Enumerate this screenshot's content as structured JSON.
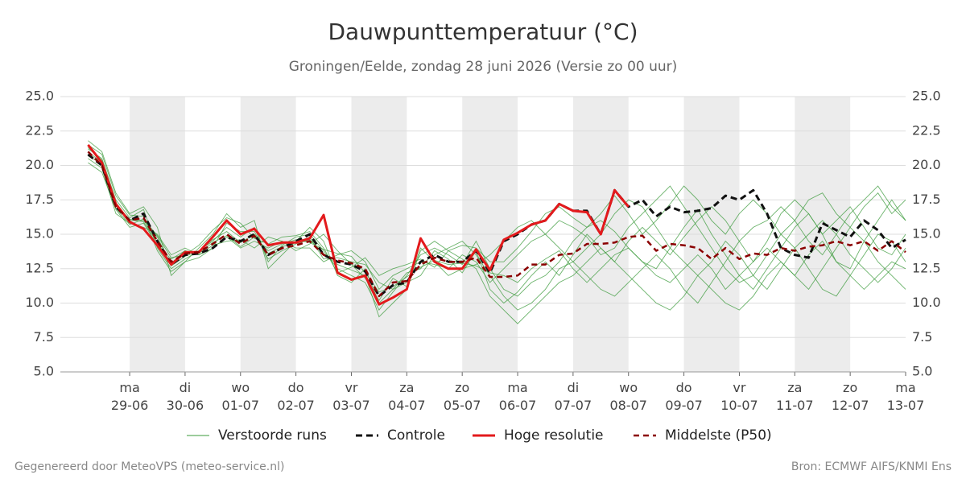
{
  "chart_data": {
    "type": "line",
    "title": "Dauwpunttemperatuur (°C)",
    "subtitle": "Groningen/Eelde, zondag 28 juni 2026 (Versie zo 00 uur)",
    "footer_left": "Gegenereerd door MeteoVPS (meteo-service.nl)",
    "footer_right": "Bron: ECMWF AIFS/KNMI Ens",
    "xlim": [
      -6,
      360
    ],
    "ylim": [
      5,
      25
    ],
    "yticks": [
      {
        "value": 5,
        "label": "5.0"
      },
      {
        "value": 7.5,
        "label": "7.5"
      },
      {
        "value": 10,
        "label": "10.0"
      },
      {
        "value": 12.5,
        "label": "12.5"
      },
      {
        "value": 15,
        "label": "15.0"
      },
      {
        "value": 17.5,
        "label": "17.5"
      },
      {
        "value": 20,
        "label": "20.0"
      },
      {
        "value": 22.5,
        "label": "22.5"
      },
      {
        "value": 25,
        "label": "25.0"
      }
    ],
    "xticks": [
      {
        "value": 24,
        "label": "ma 29-06"
      },
      {
        "value": 48,
        "label": "di 30-06"
      },
      {
        "value": 72,
        "label": "wo 01-07"
      },
      {
        "value": 96,
        "label": "do 02-07"
      },
      {
        "value": 120,
        "label": "vr 03-07"
      },
      {
        "value": 144,
        "label": "za 04-07"
      },
      {
        "value": 168,
        "label": "zo 05-07"
      },
      {
        "value": 192,
        "label": "ma 06-07"
      },
      {
        "value": 216,
        "label": "di 07-07"
      },
      {
        "value": 240,
        "label": "wo 08-07"
      },
      {
        "value": 264,
        "label": "do 09-07"
      },
      {
        "value": 288,
        "label": "vr 10-07"
      },
      {
        "value": 312,
        "label": "za 11-07"
      },
      {
        "value": 336,
        "label": "zo 12-07"
      },
      {
        "value": 360,
        "label": "ma 13-07"
      }
    ],
    "grid": true,
    "x": [
      6,
      12,
      18,
      24,
      30,
      36,
      42,
      48,
      54,
      60,
      66,
      72,
      78,
      84,
      90,
      96,
      102,
      108,
      114,
      120,
      126,
      132,
      138,
      144,
      150,
      156,
      162,
      168,
      174,
      180,
      186,
      192,
      198,
      204,
      210,
      216,
      222,
      228,
      234,
      240,
      246,
      252,
      258,
      264,
      270,
      276,
      282,
      288,
      294,
      300,
      306,
      312,
      318,
      324,
      330,
      336,
      342,
      348,
      354,
      360
    ],
    "ensemble": {
      "name": "Verstoorde runs",
      "color": "#3a9a3a",
      "members": [
        [
          21.2,
          20.5,
          17.5,
          16.2,
          16.8,
          14.0,
          12.5,
          13.2,
          13.8,
          14.5,
          15.5,
          14.8,
          15.5,
          13.0,
          14.2,
          14.8,
          15.0,
          13.8,
          12.5,
          12.0,
          11.5,
          9.5,
          10.8,
          12.0,
          13.5,
          14.0,
          13.5,
          12.8,
          14.5,
          12.5,
          11.0,
          10.5,
          11.5,
          12.0,
          13.0,
          14.5,
          15.5,
          16.0,
          15.2,
          14.0,
          13.0,
          12.5,
          14.0,
          15.5,
          16.8,
          15.0,
          13.5,
          12.0,
          11.0,
          12.5,
          14.0,
          15.5,
          16.5,
          15.0,
          13.0,
          12.5,
          14.5,
          16.0,
          17.5,
          16.0
        ],
        [
          20.5,
          19.8,
          16.5,
          15.8,
          15.5,
          15.0,
          13.5,
          14.0,
          13.5,
          14.0,
          14.8,
          14.0,
          14.5,
          14.0,
          14.5,
          14.0,
          14.0,
          13.0,
          13.5,
          13.8,
          13.0,
          11.0,
          12.0,
          12.5,
          13.0,
          12.8,
          12.5,
          13.5,
          13.0,
          11.5,
          12.5,
          13.5,
          14.5,
          15.0,
          16.0,
          15.5,
          14.8,
          13.5,
          14.0,
          15.5,
          16.5,
          17.5,
          18.5,
          17.0,
          15.5,
          14.0,
          12.5,
          11.5,
          12.0,
          13.5,
          15.0,
          14.0,
          12.5,
          11.0,
          10.5,
          12.0,
          13.5,
          15.0,
          14.5,
          13.0
        ],
        [
          21.8,
          21.0,
          18.0,
          16.5,
          17.0,
          15.5,
          12.0,
          13.0,
          14.0,
          15.0,
          16.5,
          15.5,
          16.0,
          12.5,
          13.5,
          14.5,
          15.5,
          14.5,
          12.0,
          11.5,
          12.5,
          10.0,
          11.0,
          11.5,
          12.0,
          13.5,
          14.0,
          14.5,
          13.5,
          12.0,
          10.5,
          9.5,
          10.0,
          11.0,
          12.5,
          13.0,
          12.0,
          11.0,
          10.5,
          11.5,
          12.5,
          13.5,
          12.5,
          11.0,
          10.0,
          11.5,
          13.0,
          14.5,
          15.5,
          16.0,
          17.0,
          16.0,
          14.5,
          13.5,
          15.0,
          16.5,
          17.5,
          18.5,
          17.0,
          16.0
        ],
        [
          20.2,
          19.5,
          16.8,
          15.5,
          15.8,
          14.2,
          13.2,
          13.8,
          13.5,
          14.2,
          14.5,
          14.6,
          14.0,
          14.8,
          14.5,
          13.8,
          14.3,
          15.0,
          13.8,
          12.8,
          11.8,
          10.2,
          11.8,
          11.2,
          14.0,
          13.0,
          12.0,
          12.5,
          12.8,
          13.5,
          14.5,
          15.5,
          16.0,
          15.0,
          14.0,
          13.0,
          14.0,
          15.0,
          16.5,
          17.5,
          17.0,
          15.5,
          14.0,
          13.0,
          12.0,
          11.0,
          10.0,
          9.5,
          10.5,
          12.0,
          13.0,
          12.0,
          11.0,
          12.5,
          14.0,
          15.5,
          14.5,
          13.0,
          12.0,
          11.0
        ],
        [
          21.0,
          20.2,
          17.3,
          16.0,
          16.0,
          14.8,
          12.7,
          13.4,
          13.8,
          14.6,
          15.2,
          14.4,
          15.0,
          13.6,
          14.1,
          14.4,
          14.8,
          13.2,
          13.3,
          13.0,
          12.8,
          11.5,
          11.0,
          12.2,
          12.5,
          13.8,
          13.2,
          12.2,
          13.8,
          11.0,
          10.0,
          10.8,
          12.0,
          13.0,
          12.0,
          13.5,
          15.0,
          14.0,
          13.0,
          14.5,
          15.5,
          14.5,
          13.5,
          14.8,
          16.0,
          17.0,
          16.0,
          14.5,
          13.0,
          14.5,
          16.5,
          17.5,
          16.5,
          15.0,
          16.0,
          17.0,
          15.5,
          14.0,
          13.5,
          15.0
        ],
        [
          21.5,
          20.8,
          17.8,
          16.4,
          16.3,
          13.8,
          12.3,
          13.0,
          13.3,
          14.0,
          15.8,
          15.2,
          15.2,
          13.2,
          13.8,
          14.3,
          14.6,
          13.6,
          12.8,
          12.4,
          12.0,
          9.0,
          10.0,
          11.0,
          13.8,
          14.5,
          13.8,
          13.2,
          12.5,
          10.5,
          9.5,
          8.5,
          9.5,
          10.5,
          11.5,
          12.0,
          13.0,
          14.0,
          13.0,
          12.0,
          11.0,
          10.0,
          9.5,
          10.5,
          12.0,
          13.0,
          14.5,
          13.5,
          12.0,
          11.0,
          12.5,
          14.0,
          15.0,
          16.0,
          15.0,
          13.5,
          12.5,
          11.5,
          12.5,
          14.0
        ],
        [
          20.7,
          20.1,
          16.9,
          15.7,
          16.1,
          14.9,
          13.3,
          13.5,
          14.2,
          15.3,
          16.2,
          15.8,
          14.7,
          14.3,
          14.8,
          14.9,
          15.2,
          14.0,
          12.2,
          12.6,
          13.3,
          12.0,
          12.5,
          12.8,
          13.2,
          12.6,
          13.8,
          14.2,
          14.0,
          13.0,
          13.0,
          14.0,
          15.2,
          16.5,
          17.0,
          16.2,
          15.5,
          16.5,
          17.8,
          16.5,
          15.0,
          16.0,
          17.2,
          18.5,
          17.5,
          16.0,
          15.0,
          16.5,
          17.5,
          16.5,
          15.0,
          16.0,
          17.5,
          18.0,
          16.5,
          15.5,
          17.0,
          18.0,
          16.5,
          17.5
        ],
        [
          21.3,
          20.4,
          17.1,
          16.1,
          15.9,
          14.4,
          12.9,
          13.8,
          13.6,
          14.4,
          14.9,
          14.1,
          14.8,
          13.8,
          14.3,
          14.6,
          14.4,
          13.9,
          13.6,
          13.4,
          12.2,
          10.8,
          11.2,
          11.9,
          12.6,
          13.1,
          12.8,
          12.9,
          12.7,
          12.2,
          12.0,
          11.5,
          12.5,
          13.2,
          13.8,
          12.5,
          11.5,
          12.5,
          13.5,
          14.0,
          13.0,
          12.0,
          11.5,
          12.5,
          13.5,
          12.5,
          11.0,
          12.0,
          13.0,
          14.0,
          13.0,
          12.0,
          13.5,
          14.5,
          13.0,
          12.0,
          11.0,
          12.0,
          13.0,
          12.5
        ]
      ]
    },
    "series": [
      {
        "name": "Controle",
        "color": "#111111",
        "dash": "8 5",
        "width": 3,
        "values": [
          20.8,
          20.0,
          17.0,
          16.0,
          16.5,
          14.5,
          12.8,
          13.5,
          13.6,
          14.0,
          14.8,
          14.5,
          15.0,
          13.5,
          14.0,
          14.5,
          15.0,
          13.5,
          13.0,
          12.8,
          12.3,
          10.5,
          11.3,
          11.5,
          13.0,
          13.5,
          13.0,
          13.0,
          13.8,
          12.2,
          14.5,
          15.0,
          15.7,
          16.0,
          17.2,
          16.7,
          16.7,
          15.0,
          18.2,
          17.0,
          17.5,
          16.3,
          17.0,
          16.6,
          16.7,
          16.9,
          17.8,
          17.5,
          18.2,
          16.5,
          14.0,
          13.5,
          13.3,
          15.8,
          15.3,
          14.8,
          16.0,
          15.3,
          14.0,
          14.6
        ]
      },
      {
        "name": "Hoge resolutie",
        "color": "#e31a1c",
        "width": 3,
        "values": [
          21.5,
          20.2,
          17.2,
          15.9,
          15.4,
          14.2,
          12.8,
          13.7,
          13.7,
          14.8,
          16.0,
          15.0,
          15.4,
          14.2,
          14.4,
          14.4,
          14.7,
          16.4,
          12.2,
          11.7,
          12.0,
          9.9,
          10.4,
          11.0,
          14.7,
          13.0,
          12.5,
          12.5,
          13.9,
          12.4,
          14.6,
          15.1,
          15.7,
          16.0,
          17.2,
          16.7,
          16.6,
          15.0,
          18.2,
          17.0,
          null,
          null,
          null,
          null,
          null,
          null,
          null,
          null,
          null,
          null,
          null,
          null,
          null,
          null,
          null,
          null,
          null,
          null,
          null,
          null
        ]
      },
      {
        "name": "Middelste (P50)",
        "color": "#8b0000",
        "dash": "7 5",
        "width": 2.5,
        "values": [
          21.0,
          20.0,
          17.0,
          16.0,
          16.2,
          14.5,
          13.0,
          13.6,
          13.7,
          14.3,
          15.0,
          14.3,
          14.9,
          13.5,
          14.0,
          14.2,
          14.5,
          13.5,
          13.1,
          12.9,
          12.5,
          10.5,
          11.5,
          11.6,
          12.8,
          13.3,
          13.0,
          13.0,
          13.3,
          11.9,
          11.9,
          12.0,
          12.8,
          12.8,
          13.5,
          13.6,
          14.3,
          14.3,
          14.4,
          14.8,
          14.9,
          13.8,
          14.3,
          14.2,
          14.0,
          13.2,
          14.0,
          13.2,
          13.6,
          13.5,
          14.0,
          13.8,
          14.1,
          14.2,
          14.5,
          14.2,
          14.5,
          13.8,
          14.5,
          13.7
        ]
      }
    ]
  }
}
